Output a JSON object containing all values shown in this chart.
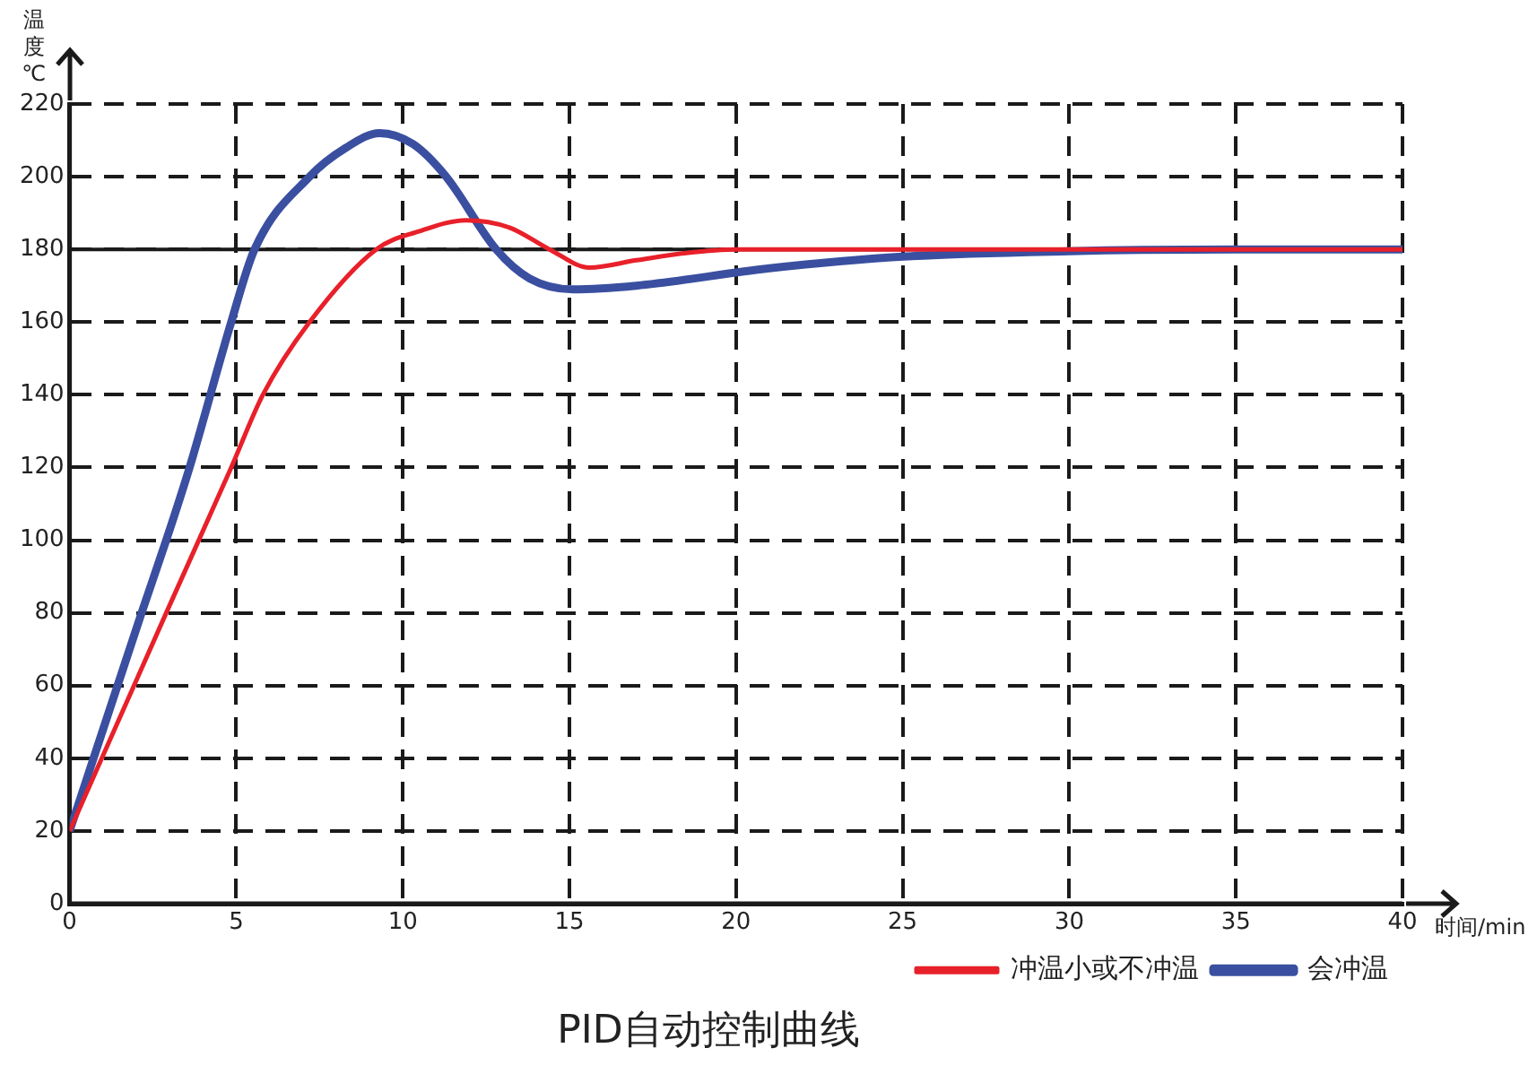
{
  "chart_data": {
    "type": "line",
    "title": "PID自动控制曲线",
    "xlabel": "时间/min",
    "ylabel": "温度℃",
    "xlim": [
      0,
      40
    ],
    "xticks": [
      0,
      5,
      10,
      15,
      20,
      25,
      30,
      35,
      40
    ],
    "ylim": [
      0,
      220
    ],
    "yticks": [
      0,
      20,
      40,
      60,
      80,
      100,
      120,
      140,
      160,
      180,
      200,
      220
    ],
    "grid": true,
    "legend": "bottom right",
    "marker": "none",
    "line_style": "solid",
    "ref_lines": [
      {
        "axis": "y",
        "value": 180,
        "color": "#1a1a1a",
        "line_style": "solid"
      }
    ],
    "series": [
      {
        "name": "冲温小或不冲温",
        "color": "#e8202a",
        "x": [
          0,
          2.9,
          4.85,
          5.8,
          7.2,
          9.2,
          10.5,
          11.9,
          13.2,
          14.4,
          15.6,
          17,
          18.5,
          20,
          25,
          30,
          35,
          40
        ],
        "values": [
          20,
          80,
          120,
          140,
          160,
          180,
          185,
          188,
          186,
          180,
          175,
          177,
          179,
          180,
          180,
          180,
          180,
          180
        ]
      },
      {
        "name": "会冲温",
        "color": "#3a4fa0",
        "x": [
          0,
          2.16,
          2.9,
          3.6,
          4.85,
          5.55,
          7.2,
          8.3,
          9.3,
          10.3,
          11.3,
          12.8,
          13.8,
          15.1,
          17,
          21,
          25,
          30,
          35,
          40
        ],
        "values": [
          20,
          80,
          100,
          120,
          160,
          180,
          200,
          208,
          212,
          209,
          200,
          180,
          172,
          169,
          170,
          174.8,
          178,
          179.5,
          180,
          180
        ]
      }
    ]
  }
}
